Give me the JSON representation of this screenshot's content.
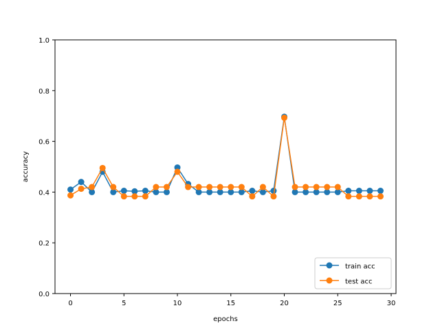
{
  "chart_data": {
    "type": "line",
    "title": "",
    "xlabel": "epochs",
    "ylabel": "accuracy",
    "xlim": [
      -1.45,
      30.45
    ],
    "ylim": [
      0.0,
      1.0
    ],
    "xticks": [
      0,
      5,
      10,
      15,
      20,
      25,
      30
    ],
    "yticks": [
      0.0,
      0.2,
      0.4,
      0.6,
      0.8,
      1.0
    ],
    "xtick_labels": [
      "0",
      "5",
      "10",
      "15",
      "20",
      "25",
      "30"
    ],
    "ytick_labels": [
      "0.0",
      "0.2",
      "0.4",
      "0.6",
      "0.8",
      "1.0"
    ],
    "grid": false,
    "legend_position": "lower-right",
    "x": [
      0,
      1,
      2,
      3,
      4,
      5,
      6,
      7,
      8,
      9,
      10,
      11,
      12,
      13,
      14,
      15,
      16,
      17,
      18,
      19,
      20,
      21,
      22,
      23,
      24,
      25,
      26,
      27,
      28,
      29
    ],
    "series": [
      {
        "name": "train acc",
        "color": "#1f77b4",
        "marker": "circle",
        "values": [
          0.41,
          0.44,
          0.4,
          0.48,
          0.4,
          0.405,
          0.403,
          0.405,
          0.4,
          0.4,
          0.497,
          0.432,
          0.4,
          0.4,
          0.4,
          0.4,
          0.4,
          0.405,
          0.4,
          0.405,
          0.697,
          0.4,
          0.4,
          0.4,
          0.4,
          0.4,
          0.405,
          0.405,
          0.405,
          0.405
        ]
      },
      {
        "name": "test acc",
        "color": "#ff7f0e",
        "marker": "circle",
        "values": [
          0.387,
          0.413,
          0.42,
          0.495,
          0.42,
          0.383,
          0.383,
          0.383,
          0.42,
          0.42,
          0.48,
          0.42,
          0.42,
          0.42,
          0.42,
          0.42,
          0.42,
          0.383,
          0.42,
          0.383,
          0.693,
          0.42,
          0.42,
          0.42,
          0.42,
          0.42,
          0.383,
          0.383,
          0.383,
          0.383
        ]
      }
    ]
  }
}
